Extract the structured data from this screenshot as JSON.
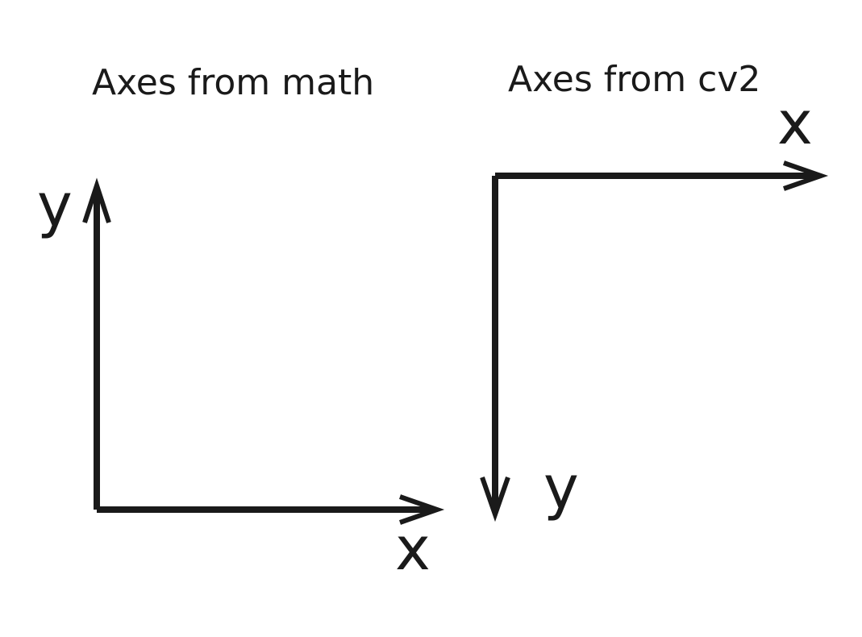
{
  "colors": {
    "stroke": "#1a1a1a",
    "background": "#ffffff"
  },
  "math_panel": {
    "title": "Axes from math",
    "x_label": "x",
    "y_label": "y",
    "x_direction": "right",
    "y_direction": "up"
  },
  "cv2_panel": {
    "title": "Axes from cv2",
    "x_label": "x",
    "y_label": "y",
    "x_direction": "right",
    "y_direction": "down"
  }
}
